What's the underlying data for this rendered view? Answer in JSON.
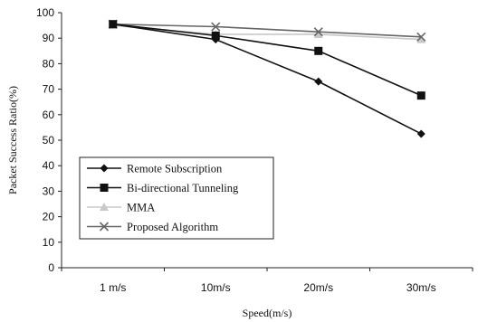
{
  "chart_data": {
    "type": "line",
    "categories": [
      "1 m/s",
      "10m/s",
      "20m/s",
      "30m/s"
    ],
    "xlabel": "Speed(m/s)",
    "ylabel": "Packet Success Ratio(%)",
    "ylim": [
      0,
      100
    ],
    "yticks": [
      0,
      10,
      20,
      30,
      40,
      50,
      60,
      70,
      80,
      90,
      100
    ],
    "grid": false,
    "legend_position": "bottom-left",
    "series": [
      {
        "name": "Remote Subscription",
        "values": [
          95.5,
          89.5,
          73,
          52.5
        ],
        "color": "#111111",
        "marker": "diamond"
      },
      {
        "name": "Bi-directional Tunneling",
        "values": [
          95.5,
          91,
          85,
          67.5
        ],
        "color": "#111111",
        "marker": "square"
      },
      {
        "name": "MMA",
        "values": [
          95,
          91.5,
          91.5,
          89.5
        ],
        "color": "#c8c8c8",
        "marker": "triangle"
      },
      {
        "name": "Proposed Algorithm",
        "values": [
          95.5,
          94.5,
          92.5,
          90.5
        ],
        "color": "#666666",
        "marker": "x"
      }
    ]
  }
}
